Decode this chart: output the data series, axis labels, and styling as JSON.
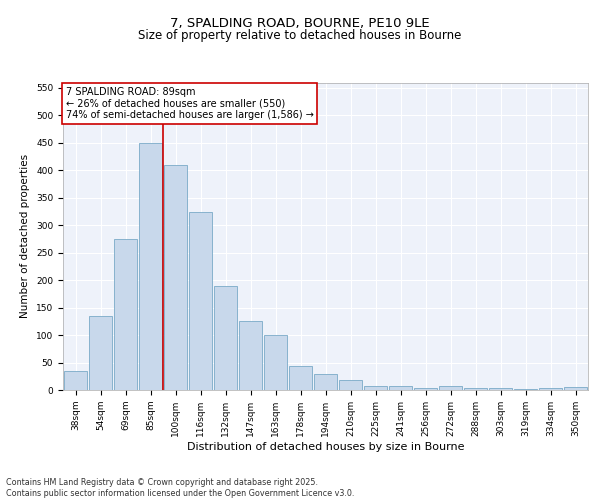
{
  "title": "7, SPALDING ROAD, BOURNE, PE10 9LE",
  "subtitle": "Size of property relative to detached houses in Bourne",
  "xlabel": "Distribution of detached houses by size in Bourne",
  "ylabel": "Number of detached properties",
  "categories": [
    "38sqm",
    "54sqm",
    "69sqm",
    "85sqm",
    "100sqm",
    "116sqm",
    "132sqm",
    "147sqm",
    "163sqm",
    "178sqm",
    "194sqm",
    "210sqm",
    "225sqm",
    "241sqm",
    "256sqm",
    "272sqm",
    "288sqm",
    "303sqm",
    "319sqm",
    "334sqm",
    "350sqm"
  ],
  "values": [
    35,
    135,
    275,
    450,
    410,
    325,
    190,
    125,
    100,
    44,
    30,
    18,
    8,
    8,
    3,
    8,
    3,
    3,
    2,
    3,
    6
  ],
  "bar_color": "#c8d8eb",
  "bar_edge_color": "#7aaac8",
  "vline_x": 3.5,
  "vline_color": "#cc0000",
  "annotation_box_text": "7 SPALDING ROAD: 89sqm\n← 26% of detached houses are smaller (550)\n74% of semi-detached houses are larger (1,586) →",
  "annotation_box_color": "#cc0000",
  "ylim": [
    0,
    560
  ],
  "yticks": [
    0,
    50,
    100,
    150,
    200,
    250,
    300,
    350,
    400,
    450,
    500,
    550
  ],
  "background_color": "#eef2fa",
  "grid_color": "#ffffff",
  "footer_text": "Contains HM Land Registry data © Crown copyright and database right 2025.\nContains public sector information licensed under the Open Government Licence v3.0.",
  "title_fontsize": 9.5,
  "subtitle_fontsize": 8.5,
  "xlabel_fontsize": 8,
  "ylabel_fontsize": 7.5,
  "tick_fontsize": 6.5,
  "annotation_fontsize": 7,
  "footer_fontsize": 5.8
}
